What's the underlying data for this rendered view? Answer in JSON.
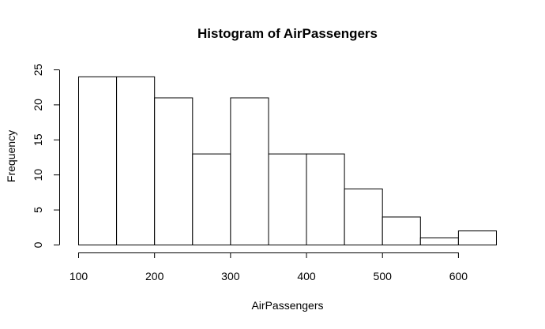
{
  "chart_data": {
    "type": "bar",
    "title": "Histogram of AirPassengers",
    "xlabel": "AirPassengers",
    "ylabel": "Frequency",
    "bins": [
      {
        "from": 100,
        "to": 150,
        "count": 24
      },
      {
        "from": 150,
        "to": 200,
        "count": 24
      },
      {
        "from": 200,
        "to": 250,
        "count": 21
      },
      {
        "from": 250,
        "to": 300,
        "count": 13
      },
      {
        "from": 300,
        "to": 350,
        "count": 21
      },
      {
        "from": 350,
        "to": 400,
        "count": 13
      },
      {
        "from": 400,
        "to": 450,
        "count": 13
      },
      {
        "from": 450,
        "to": 500,
        "count": 8
      },
      {
        "from": 500,
        "to": 550,
        "count": 4
      },
      {
        "from": 550,
        "to": 600,
        "count": 1
      },
      {
        "from": 600,
        "to": 650,
        "count": 2
      }
    ],
    "xticks": [
      100,
      200,
      300,
      400,
      500,
      600
    ],
    "yticks": [
      0,
      5,
      10,
      15,
      20,
      25
    ],
    "xlim": [
      100,
      650
    ],
    "ylim": [
      0,
      25
    ],
    "grid": false,
    "colors": {
      "bar_fill": "#ffffff",
      "bar_stroke": "#000000"
    }
  }
}
